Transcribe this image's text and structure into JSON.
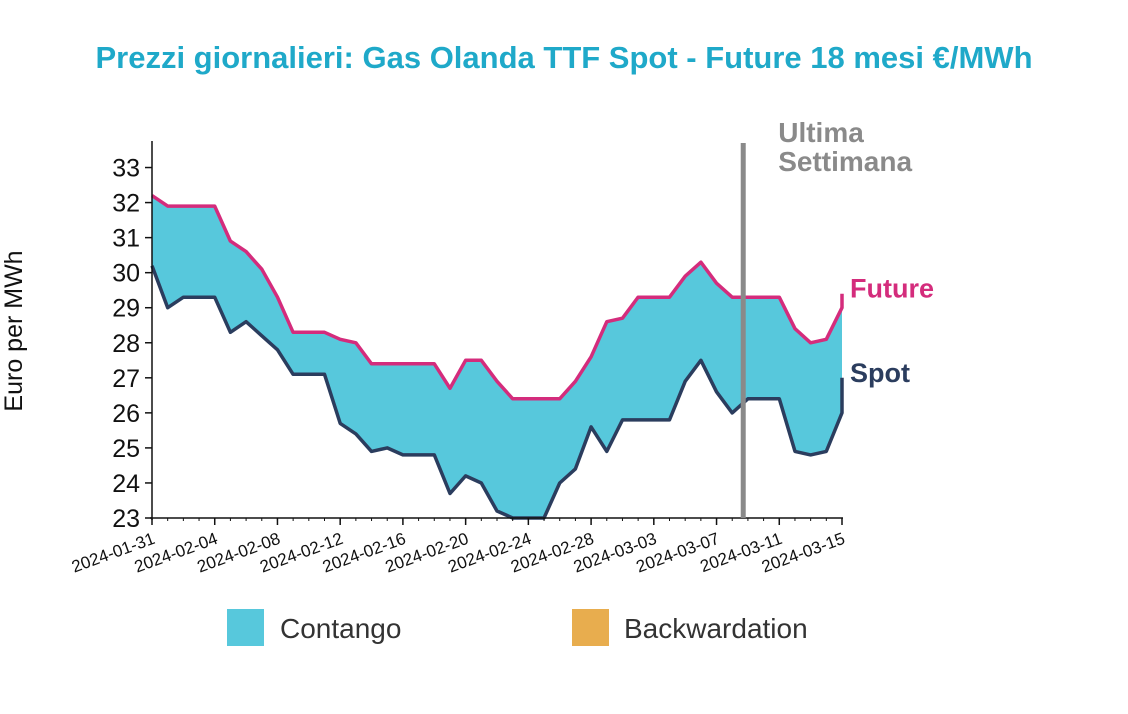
{
  "colors": {
    "title": "#1fa9c9",
    "contango": "#57c8dc",
    "backwardation": "#e8ad4e",
    "future": "#d42c7c",
    "spot": "#2b3d5e",
    "marker": "#8a8a8a"
  },
  "chart_data": {
    "type": "area",
    "title": "Prezzi giornalieri: Gas Olanda TTF Spot - Future 18 mesi €/MWh",
    "ylabel": "Euro per MWh",
    "ylim": [
      23,
      33.7
    ],
    "yticks": [
      23,
      24,
      25,
      26,
      27,
      28,
      29,
      30,
      31,
      32,
      33
    ],
    "xstart": "2024-01-31",
    "xend": "2024-03-15",
    "xticks": [
      "2024-01-31",
      "2024-02-04",
      "2024-02-08",
      "2024-02-12",
      "2024-02-16",
      "2024-02-20",
      "2024-02-24",
      "2024-02-28",
      "2024-03-03",
      "2024-03-07",
      "2024-03-11",
      "2024-03-15"
    ],
    "series": [
      {
        "name": "Future",
        "key": "future",
        "points": [
          [
            "2024-01-31",
            32.2
          ],
          [
            "2024-02-01",
            31.9
          ],
          [
            "2024-02-02",
            31.9
          ],
          [
            "2024-02-03",
            31.9
          ],
          [
            "2024-02-04",
            31.9
          ],
          [
            "2024-02-05",
            30.9
          ],
          [
            "2024-02-06",
            30.6
          ],
          [
            "2024-02-07",
            30.1
          ],
          [
            "2024-02-08",
            29.3
          ],
          [
            "2024-02-09",
            28.3
          ],
          [
            "2024-02-10",
            28.3
          ],
          [
            "2024-02-11",
            28.3
          ],
          [
            "2024-02-12",
            28.1
          ],
          [
            "2024-02-13",
            28.0
          ],
          [
            "2024-02-14",
            27.4
          ],
          [
            "2024-02-15",
            27.4
          ],
          [
            "2024-02-16",
            27.4
          ],
          [
            "2024-02-17",
            27.4
          ],
          [
            "2024-02-18",
            27.4
          ],
          [
            "2024-02-19",
            26.7
          ],
          [
            "2024-02-20",
            27.5
          ],
          [
            "2024-02-21",
            27.5
          ],
          [
            "2024-02-22",
            26.9
          ],
          [
            "2024-02-23",
            26.4
          ],
          [
            "2024-02-24",
            26.4
          ],
          [
            "2024-02-25",
            26.4
          ],
          [
            "2024-02-26",
            26.4
          ],
          [
            "2024-02-27",
            26.9
          ],
          [
            "2024-02-28",
            27.6
          ],
          [
            "2024-02-29",
            28.6
          ],
          [
            "2024-03-01",
            28.7
          ],
          [
            "2024-03-02",
            29.3
          ],
          [
            "2024-03-03",
            29.3
          ],
          [
            "2024-03-04",
            29.3
          ],
          [
            "2024-03-05",
            29.9
          ],
          [
            "2024-03-06",
            30.3
          ],
          [
            "2024-03-07",
            29.7
          ],
          [
            "2024-03-08",
            29.3
          ],
          [
            "2024-03-09",
            29.3
          ],
          [
            "2024-03-10",
            29.3
          ],
          [
            "2024-03-11",
            29.3
          ],
          [
            "2024-03-12",
            28.4
          ],
          [
            "2024-03-13",
            28.0
          ],
          [
            "2024-03-14",
            28.1
          ],
          [
            "2024-03-15",
            29.0
          ],
          [
            "2024-03-16",
            29.4
          ]
        ]
      },
      {
        "name": "Spot",
        "key": "spot",
        "points": [
          [
            "2024-01-31",
            30.2
          ],
          [
            "2024-02-01",
            29.0
          ],
          [
            "2024-02-02",
            29.3
          ],
          [
            "2024-02-03",
            29.3
          ],
          [
            "2024-02-04",
            29.3
          ],
          [
            "2024-02-05",
            28.3
          ],
          [
            "2024-02-06",
            28.6
          ],
          [
            "2024-02-07",
            28.2
          ],
          [
            "2024-02-08",
            27.8
          ],
          [
            "2024-02-09",
            27.1
          ],
          [
            "2024-02-10",
            27.1
          ],
          [
            "2024-02-11",
            27.1
          ],
          [
            "2024-02-12",
            25.7
          ],
          [
            "2024-02-13",
            25.4
          ],
          [
            "2024-02-14",
            24.9
          ],
          [
            "2024-02-15",
            25.0
          ],
          [
            "2024-02-16",
            24.8
          ],
          [
            "2024-02-17",
            24.8
          ],
          [
            "2024-02-18",
            24.8
          ],
          [
            "2024-02-19",
            23.7
          ],
          [
            "2024-02-20",
            24.2
          ],
          [
            "2024-02-21",
            24.0
          ],
          [
            "2024-02-22",
            23.2
          ],
          [
            "2024-02-23",
            22.9
          ],
          [
            "2024-02-24",
            22.9
          ],
          [
            "2024-02-25",
            22.9
          ],
          [
            "2024-02-26",
            24.0
          ],
          [
            "2024-02-27",
            24.4
          ],
          [
            "2024-02-28",
            25.6
          ],
          [
            "2024-02-29",
            24.9
          ],
          [
            "2024-03-01",
            25.8
          ],
          [
            "2024-03-02",
            25.8
          ],
          [
            "2024-03-03",
            25.8
          ],
          [
            "2024-03-04",
            25.8
          ],
          [
            "2024-03-05",
            26.9
          ],
          [
            "2024-03-06",
            27.5
          ],
          [
            "2024-03-07",
            26.6
          ],
          [
            "2024-03-08",
            26.0
          ],
          [
            "2024-03-09",
            26.4
          ],
          [
            "2024-03-10",
            26.4
          ],
          [
            "2024-03-11",
            26.4
          ],
          [
            "2024-03-12",
            24.9
          ],
          [
            "2024-03-13",
            24.8
          ],
          [
            "2024-03-14",
            24.9
          ],
          [
            "2024-03-15",
            26.0
          ],
          [
            "2024-03-16",
            27.0
          ]
        ]
      }
    ],
    "marker": {
      "date": "2024-03-08",
      "label_line1": "Ultima",
      "label_line2": "Settimana"
    },
    "legend": [
      {
        "key": "contango",
        "label": "Contango"
      },
      {
        "key": "backwardation",
        "label": "Backwardation"
      }
    ],
    "legend_placement": "bottom",
    "grid": false
  }
}
